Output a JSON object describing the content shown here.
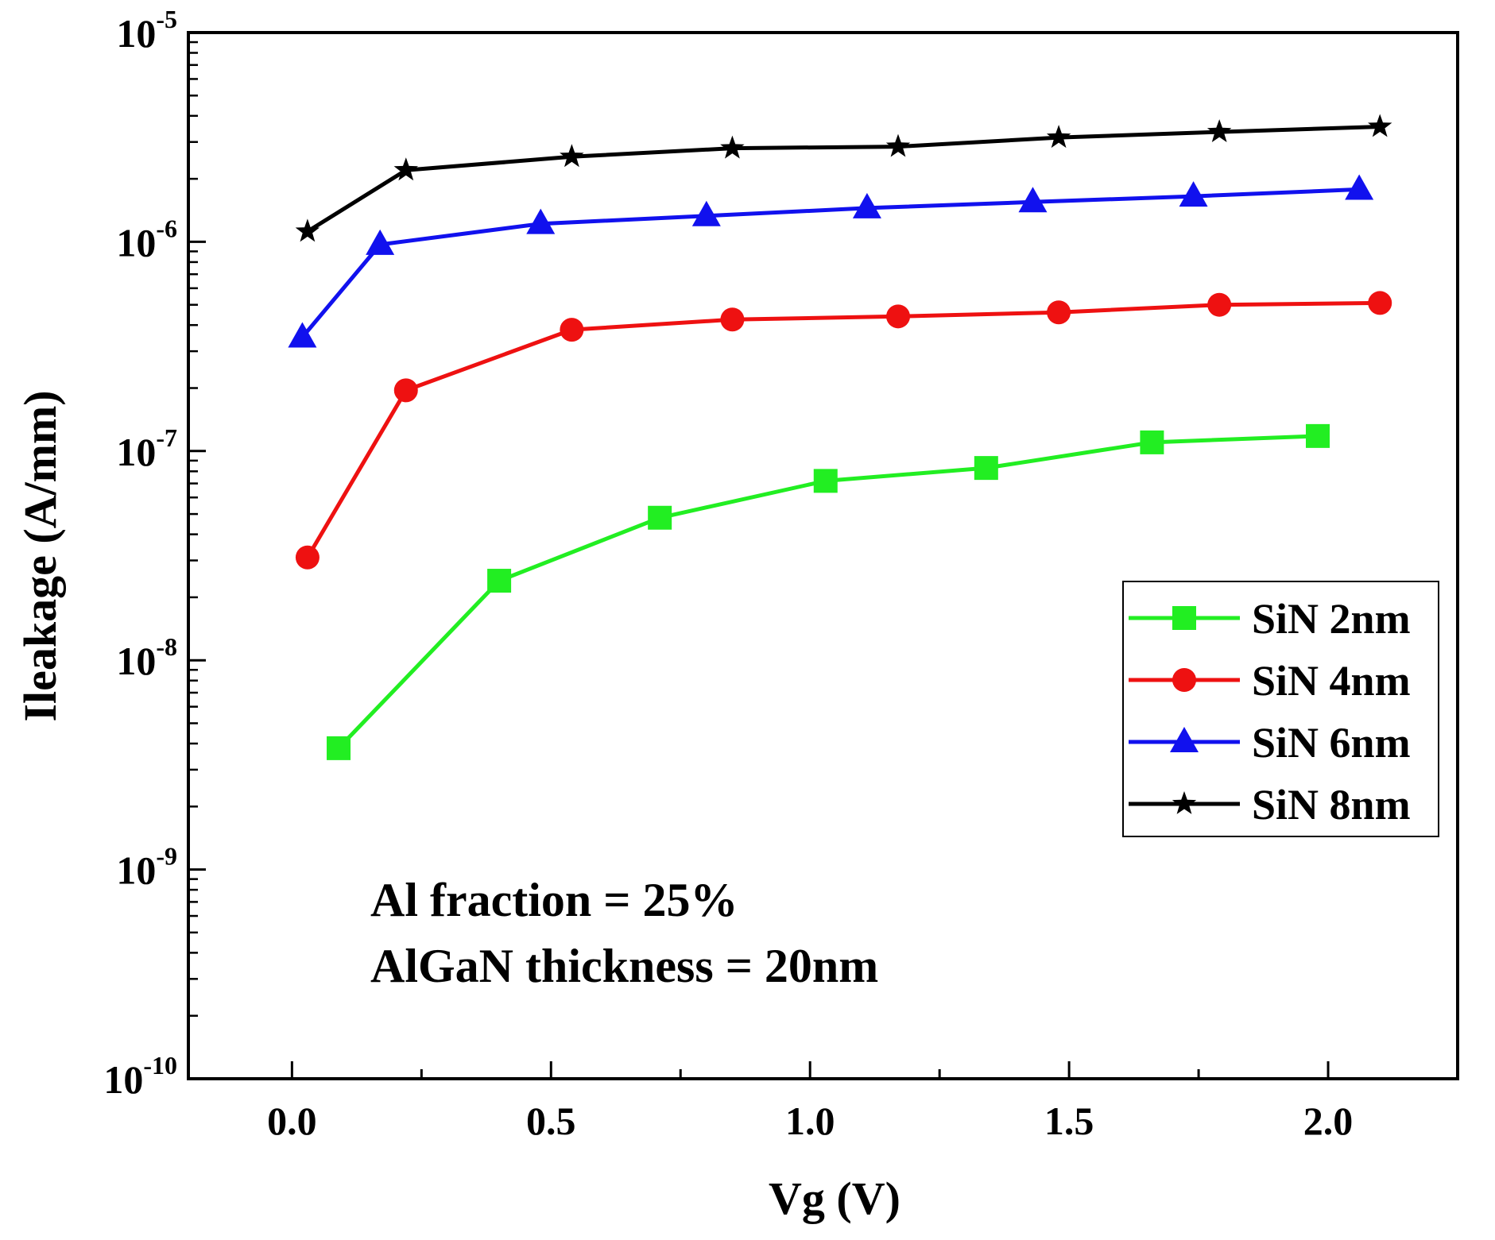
{
  "chart_data": {
    "type": "line",
    "title": "",
    "xlabel": "Vg (V)",
    "ylabel": "Ileakage (A/mm)",
    "xlim": [
      -0.2,
      2.25
    ],
    "ylim": [
      1e-10,
      1e-05
    ],
    "yscale": "log",
    "xticks": [
      0.0,
      0.5,
      1.0,
      1.5,
      2.0
    ],
    "x_tick_labels": [
      "0.0",
      "0.5",
      "1.0",
      "1.5",
      "2.0"
    ],
    "y_tick_labels": [
      {
        "base": "10",
        "exp": "-10",
        "value": 1e-10
      },
      {
        "base": "10",
        "exp": "-9",
        "value": 1e-09
      },
      {
        "base": "10",
        "exp": "-8",
        "value": 1e-08
      },
      {
        "base": "10",
        "exp": "-7",
        "value": 1e-07
      },
      {
        "base": "10",
        "exp": "-6",
        "value": 1e-06
      },
      {
        "base": "10",
        "exp": "-5",
        "value": 1e-05
      }
    ],
    "legend_position": "right",
    "series": [
      {
        "name": "SiN 2nm",
        "color": "#22ee22",
        "marker": "square",
        "x": [
          0.09,
          0.4,
          0.71,
          1.03,
          1.34,
          1.66,
          1.98
        ],
        "y": [
          3.8e-09,
          2.4e-08,
          4.8e-08,
          7.2e-08,
          8.3e-08,
          1.1e-07,
          1.18e-07
        ]
      },
      {
        "name": "SiN 4nm",
        "color": "#ee1111",
        "marker": "circle",
        "x": [
          0.03,
          0.22,
          0.54,
          0.85,
          1.17,
          1.48,
          1.79,
          2.1
        ],
        "y": [
          3.1e-08,
          1.95e-07,
          3.8e-07,
          4.25e-07,
          4.4e-07,
          4.6e-07,
          5e-07,
          5.1e-07
        ]
      },
      {
        "name": "SiN 6nm",
        "color": "#1111ee",
        "marker": "triangle",
        "x": [
          0.02,
          0.17,
          0.48,
          0.8,
          1.11,
          1.43,
          1.74,
          2.06
        ],
        "y": [
          3.5e-07,
          9.7e-07,
          1.22e-06,
          1.33e-06,
          1.45e-06,
          1.55e-06,
          1.65e-06,
          1.78e-06
        ]
      },
      {
        "name": "SiN 8nm",
        "color": "#000000",
        "marker": "star",
        "x": [
          0.03,
          0.22,
          0.54,
          0.85,
          1.17,
          1.48,
          1.79,
          2.1
        ],
        "y": [
          1.12e-06,
          2.2e-06,
          2.55e-06,
          2.8e-06,
          2.85e-06,
          3.15e-06,
          3.35e-06,
          3.55e-06
        ]
      }
    ],
    "annotations": [
      "Al fraction = 25%",
      "AlGaN thickness = 20nm"
    ]
  }
}
